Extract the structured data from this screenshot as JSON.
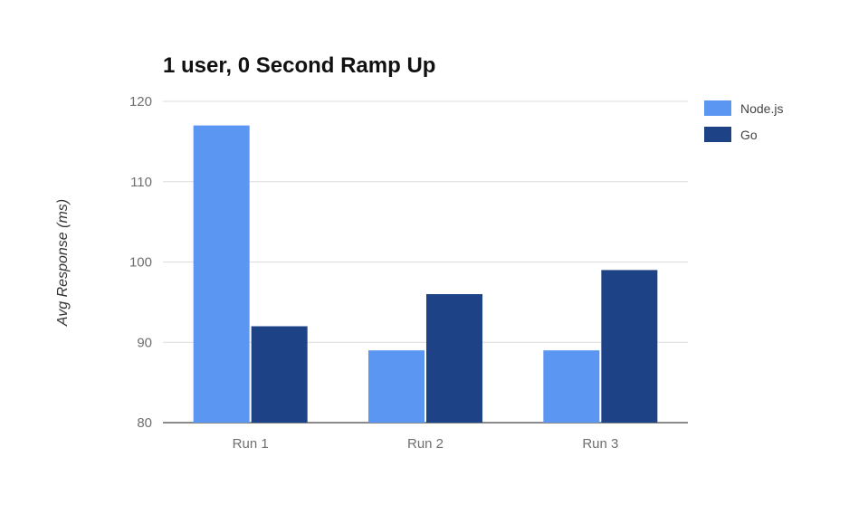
{
  "chart_data": {
    "type": "bar",
    "title": "1 user, 0 Second Ramp Up",
    "xlabel": "",
    "ylabel": "Avg Response (ms)",
    "categories": [
      "Run 1",
      "Run 2",
      "Run 3"
    ],
    "series": [
      {
        "name": "Node.js",
        "values": [
          117,
          89,
          89
        ],
        "color": "#5b96f2"
      },
      {
        "name": "Go",
        "values": [
          92,
          96,
          99
        ],
        "color": "#1d4285"
      }
    ],
    "ylim": [
      80,
      120
    ],
    "yticks": [
      "80",
      "90",
      "100",
      "110",
      "120"
    ],
    "grid": true,
    "legend_position": "right"
  }
}
